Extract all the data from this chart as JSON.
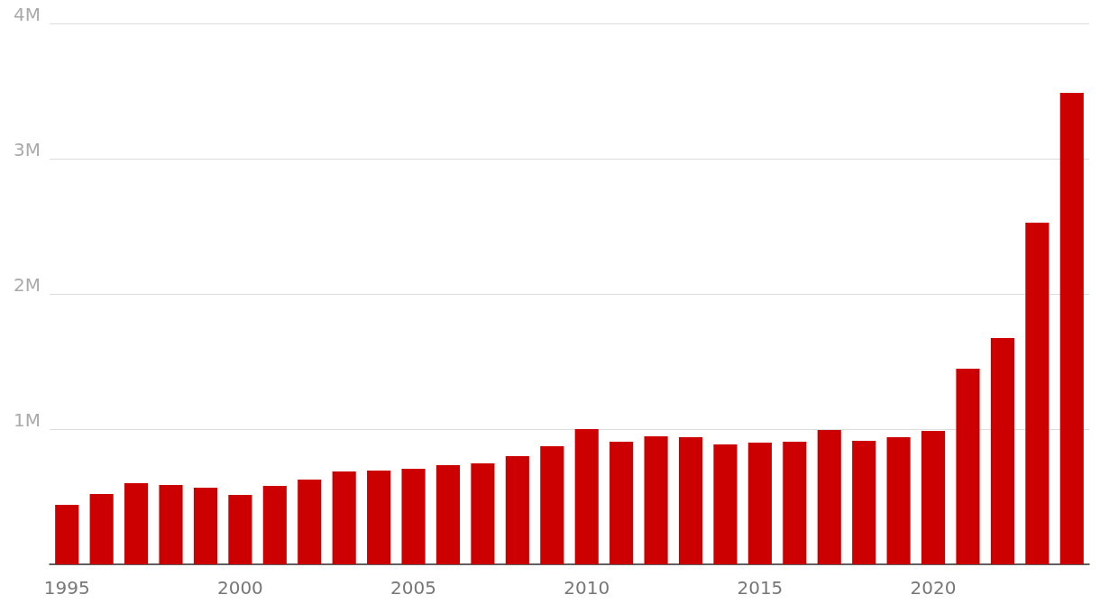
{
  "chart_data": {
    "type": "bar",
    "categories": [
      "1995",
      null,
      null,
      null,
      null,
      "2000",
      null,
      null,
      null,
      null,
      "2005",
      null,
      null,
      null,
      null,
      "2010",
      null,
      null,
      null,
      null,
      "2015",
      null,
      null,
      null,
      null,
      "2020",
      null,
      null,
      null,
      null
    ],
    "values": [
      440000,
      520000,
      600000,
      587000,
      567000,
      513000,
      580000,
      627000,
      687000,
      693000,
      707000,
      733000,
      747000,
      800000,
      873000,
      1000000,
      907000,
      947000,
      940000,
      887000,
      900000,
      907000,
      993000,
      913000,
      940000,
      987000,
      1447000,
      1673000,
      2527000,
      3487000
    ],
    "color": "#cc0000",
    "ylim": [
      0,
      4000000
    ],
    "yticks": [
      {
        "value": 0,
        "label": null
      },
      {
        "value": 1000000,
        "label": "1M"
      },
      {
        "value": 2000000,
        "label": "2M"
      },
      {
        "value": 3000000,
        "label": "3M"
      },
      {
        "value": 4000000,
        "label": "4M"
      }
    ],
    "grid": "y"
  }
}
